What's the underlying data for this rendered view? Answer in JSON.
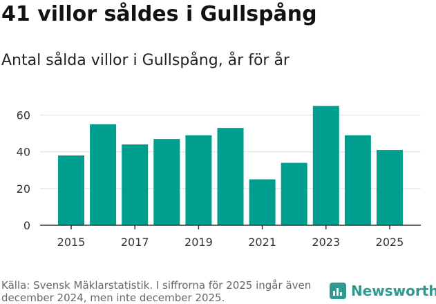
{
  "header": {
    "title": "41 villor såldes i Gullspång",
    "subtitle": "Antal sålda villor i Gullspång, år för år"
  },
  "footer": {
    "source": "Källa: Svensk Mäklarstatistik. I siffrorna för 2025 ingår även december 2024, men inte december 2025."
  },
  "brand": {
    "name": "Newsworthy",
    "icon": "newsworthy-logo-icon",
    "color": "#2e9a8e"
  },
  "chart_data": {
    "type": "bar",
    "categories": [
      "2015",
      "2016",
      "2017",
      "2018",
      "2019",
      "2020",
      "2021",
      "2022",
      "2023",
      "2024",
      "2025"
    ],
    "values": [
      38,
      55,
      44,
      47,
      49,
      53,
      25,
      34,
      65,
      49,
      41
    ],
    "x_tick_labels": [
      "2015",
      "2017",
      "2019",
      "2021",
      "2023",
      "2025"
    ],
    "y_ticks": [
      0,
      20,
      40,
      60
    ],
    "ylim": [
      0,
      70
    ],
    "grid": true,
    "bar_color": "#009e8e",
    "title": "41 villor såldes i Gullspång",
    "subtitle": "Antal sålda villor i Gullspång, år för år",
    "xlabel": "",
    "ylabel": ""
  }
}
